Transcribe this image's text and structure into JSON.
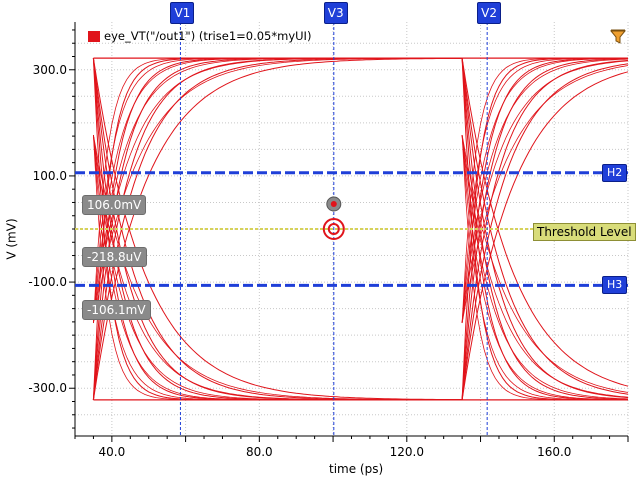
{
  "chart_data": {
    "type": "line",
    "title": "",
    "xlabel": "time (ps)",
    "ylabel": "V (mV)",
    "xlim": [
      30,
      180
    ],
    "ylim": [
      -390,
      390
    ],
    "x_ticks": [
      40,
      80,
      120,
      160
    ],
    "x_tick_labels": [
      "40.0",
      "80.0",
      "120.0",
      "160.0"
    ],
    "y_ticks": [
      -300,
      -100,
      100,
      300
    ],
    "y_tick_labels": [
      "-300.0",
      "-100.0",
      "100.0",
      "300.0"
    ],
    "grid": true,
    "legend_position": "top-left",
    "series": [
      {
        "name": "eye_VT(\"/out1\") (trise1=0.05*myUI)",
        "color": "#e0141b",
        "eye": {
          "high_level": 322,
          "low_level": -322,
          "threshold": 0,
          "crossing_times": [
            35,
            135
          ],
          "unit_interval": 100
        }
      }
    ],
    "vertical_markers": [
      {
        "label": "V1",
        "x": 58.6
      },
      {
        "label": "V3",
        "x": 100.2
      },
      {
        "label": "V2",
        "x": 141.8
      }
    ],
    "horizontal_markers": [
      {
        "label": "H2",
        "y": 106.0
      },
      {
        "label": "H3",
        "y": -106.1
      }
    ],
    "threshold": {
      "label": "Threshold Level",
      "y": 0.0
    },
    "readouts": [
      {
        "text": "106.0mV"
      },
      {
        "text": "-218.8uV"
      },
      {
        "text": "-106.1mV"
      }
    ],
    "colors": {
      "trace": "#e0141b",
      "marker": "#1f3fd8",
      "threshold": "#d6d25a",
      "grid": "#c8c8c8"
    }
  },
  "toolbar": {
    "filter_icon": "filter-icon"
  }
}
